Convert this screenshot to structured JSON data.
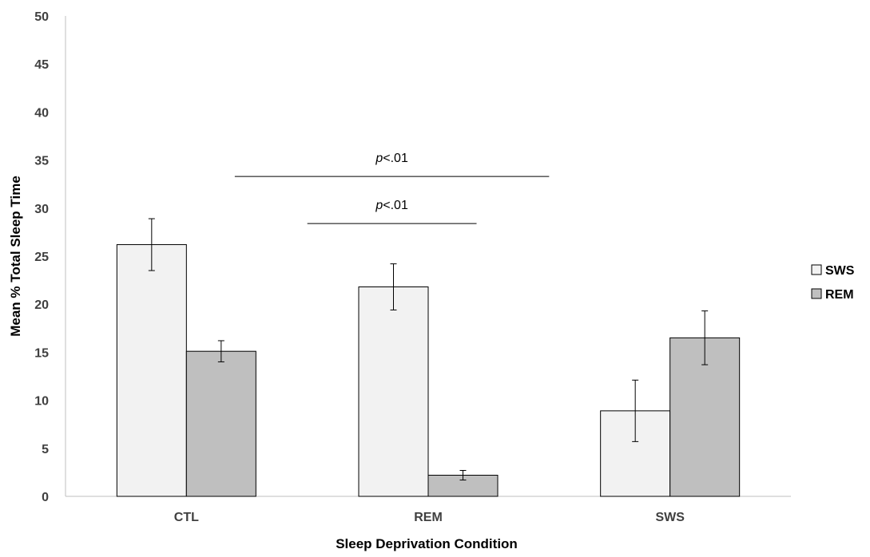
{
  "chart_data": {
    "type": "bar",
    "title": "",
    "xlabel": "Sleep Deprivation  Condition",
    "ylabel": "Mean % Total Sleep Time",
    "ylim": [
      0,
      50
    ],
    "yticks": [
      0,
      5,
      10,
      15,
      20,
      25,
      30,
      35,
      40,
      45,
      50
    ],
    "categories": [
      "CTL",
      "REM",
      "SWS"
    ],
    "series": [
      {
        "name": "SWS",
        "values": [
          26.2,
          21.8,
          8.9
        ],
        "errors": [
          2.7,
          2.4,
          3.2
        ],
        "color": "#f2f2f2"
      },
      {
        "name": "REM",
        "values": [
          15.1,
          2.2,
          16.5
        ],
        "errors": [
          1.1,
          0.5,
          2.8
        ],
        "color": "#bfbfbf"
      }
    ],
    "grid": false,
    "legend_position": "right",
    "annotations": [
      {
        "italic": "p",
        "rest": "<.01",
        "x_from": 0.2,
        "x_to": 1.5,
        "y": 33.3
      },
      {
        "italic": "p",
        "rest": "<.01",
        "x_from": 0.5,
        "x_to": 1.2,
        "y": 28.4
      }
    ]
  }
}
